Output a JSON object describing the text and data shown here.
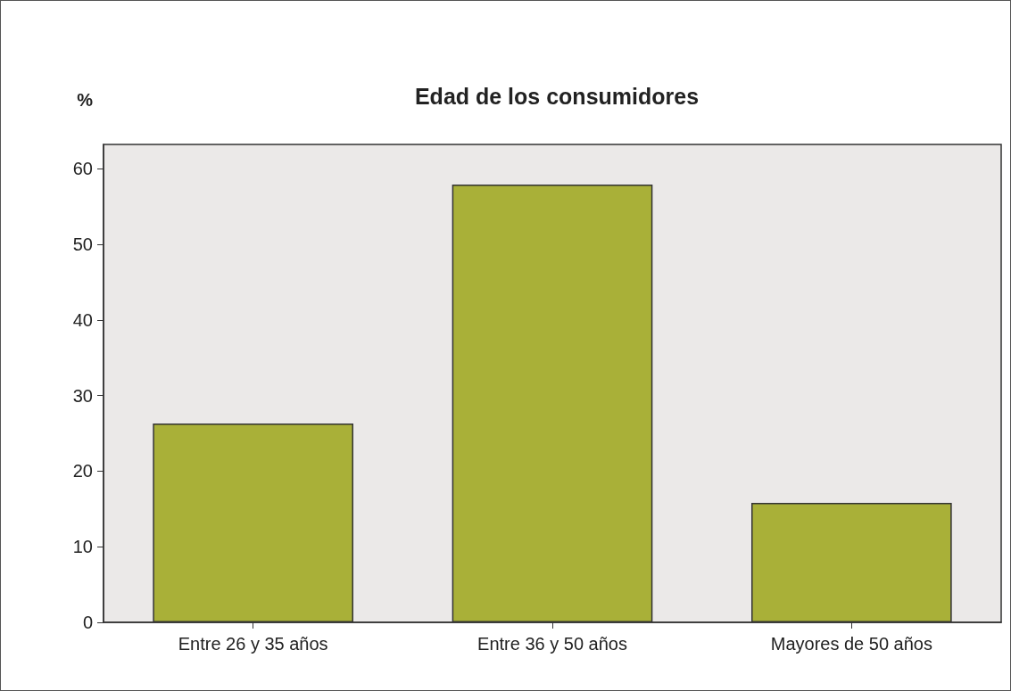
{
  "chart_data": {
    "type": "bar",
    "title": "Edad de los consumidores",
    "ylabel": "%",
    "categories": [
      "Entre 26 y 35 años",
      "Entre 36 y 50 años",
      "Mayores de 50 años"
    ],
    "values": [
      26.3,
      57.9,
      15.8
    ],
    "color": "#a9b038",
    "ylim": [
      0,
      63.2
    ],
    "yticks": [
      0,
      10,
      20,
      30,
      40,
      50,
      60
    ],
    "grid": false
  }
}
